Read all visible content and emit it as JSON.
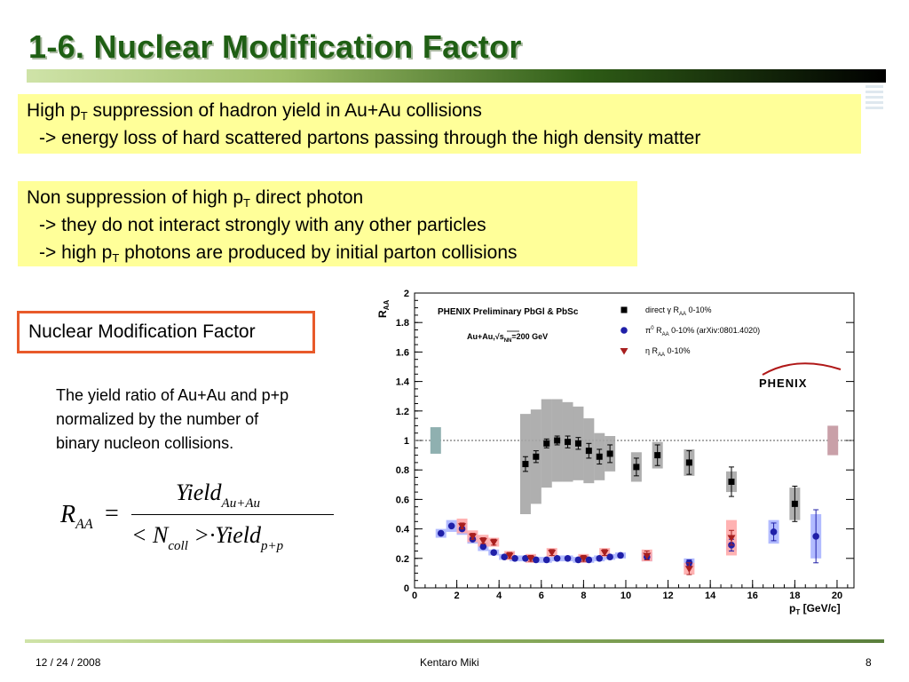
{
  "slide": {
    "title": "1-6. Nuclear Modification Factor",
    "box1": {
      "line1_pre": "High p",
      "line1_sub": "T",
      "line1_post": " suppression of hadron yield in Au+Au collisions",
      "line2": "-> energy loss of hard scattered partons passing through the high density matter"
    },
    "box2": {
      "line1_pre": "Non suppression of high p",
      "line1_sub": "T",
      "line1_post": " direct photon",
      "line2": "-> they do not interact strongly with any other particles",
      "line3_pre": "-> high p",
      "line3_sub": "T",
      "line3_post": " photons are produced by initial parton collisions"
    },
    "nmf_label": "Nuclear Modification Factor",
    "description": [
      "The yield ratio of Au+Au and p+p",
      "normalized by the number of",
      "binary nucleon collisions."
    ],
    "formula": {
      "lhs": "R",
      "lhs_sub": "AA",
      "eq": "=",
      "num": "Yield",
      "num_sub": "Au+Au",
      "den_pre": "< N",
      "den_sub1": "coll",
      "den_mid": " >·Yield",
      "den_sub2": "p+p"
    },
    "footer": {
      "date": "12 / 24 / 2008",
      "author": "Kentaro Miki",
      "page": "8"
    }
  },
  "chart_data": {
    "type": "scatter",
    "ylabel": "R_AA",
    "xlabel": "p_T [GeV/c]",
    "xlim": [
      0,
      20.8
    ],
    "ylim": [
      0,
      2
    ],
    "x_ticks": [
      0,
      2,
      4,
      6,
      8,
      10,
      12,
      14,
      16,
      18,
      20
    ],
    "y_ticks": [
      0,
      0.2,
      0.4,
      0.6,
      0.8,
      1,
      1.2,
      1.4,
      1.6,
      1.8,
      2
    ],
    "x_tick_labels": [
      "0",
      "2",
      "4",
      "6",
      "8",
      "10",
      "12",
      "14",
      "16",
      "18",
      "20"
    ],
    "y_tick_labels": [
      "0",
      "0.2",
      "0.4",
      "0.6",
      "0.8",
      "1",
      "1.2",
      "1.4",
      "1.6",
      "1.8",
      "2"
    ],
    "reference_line": 1,
    "header_text": "PHENIX Preliminary PbGl & PbSc",
    "energy_text": "Au+Au,√s",
    "energy_sub": "NN",
    "energy_post": "=200 GeV",
    "logo": "PHENIX",
    "norm_boxes": [
      {
        "x": 1.0,
        "low": 0.91,
        "high": 1.09,
        "color": "#8fb0b0"
      },
      {
        "x": 19.8,
        "low": 0.9,
        "high": 1.1,
        "color": "#c9a0a8"
      }
    ],
    "series": [
      {
        "name": "direct γ R",
        "name_sub": "AA",
        "name_post": " 0-10%",
        "marker": "square",
        "color": "#000000",
        "syst_color": "#a6a6a6",
        "points": [
          {
            "x": 5.25,
            "y": 0.84,
            "err": 0.05,
            "syst": 0.34
          },
          {
            "x": 5.75,
            "y": 0.89,
            "err": 0.04,
            "syst": 0.32
          },
          {
            "x": 6.25,
            "y": 0.98,
            "err": 0.03,
            "syst": 0.3
          },
          {
            "x": 6.75,
            "y": 1.0,
            "err": 0.03,
            "syst": 0.28
          },
          {
            "x": 7.25,
            "y": 0.99,
            "err": 0.04,
            "syst": 0.27
          },
          {
            "x": 7.75,
            "y": 0.98,
            "err": 0.04,
            "syst": 0.25
          },
          {
            "x": 8.25,
            "y": 0.93,
            "err": 0.05,
            "syst": 0.22
          },
          {
            "x": 8.75,
            "y": 0.89,
            "err": 0.05,
            "syst": 0.16
          },
          {
            "x": 9.25,
            "y": 0.91,
            "err": 0.06,
            "syst": 0.12
          },
          {
            "x": 10.5,
            "y": 0.82,
            "err": 0.06,
            "syst": 0.1
          },
          {
            "x": 11.5,
            "y": 0.9,
            "err": 0.07,
            "syst": 0.09
          },
          {
            "x": 13.0,
            "y": 0.85,
            "err": 0.08,
            "syst": 0.09
          },
          {
            "x": 15.0,
            "y": 0.72,
            "err": 0.1,
            "syst": 0.07
          },
          {
            "x": 18.0,
            "y": 0.57,
            "err": 0.12,
            "syst": 0.11
          }
        ]
      },
      {
        "name": "π",
        "name_sup": "0",
        "name_mid": " R",
        "name_sub": "AA",
        "name_post": " 0-10% (arXiv:0801.4020)",
        "marker": "circle",
        "color": "#1f1fa8",
        "syst_color": "#aab4ff",
        "points": [
          {
            "x": 1.25,
            "y": 0.37,
            "err": 0.01,
            "syst": 0.03
          },
          {
            "x": 1.75,
            "y": 0.42,
            "err": 0.01,
            "syst": 0.04
          },
          {
            "x": 2.25,
            "y": 0.4,
            "err": 0.01,
            "syst": 0.04
          },
          {
            "x": 2.75,
            "y": 0.33,
            "err": 0.01,
            "syst": 0.03
          },
          {
            "x": 3.25,
            "y": 0.28,
            "err": 0.01,
            "syst": 0.03
          },
          {
            "x": 3.75,
            "y": 0.24,
            "err": 0.01,
            "syst": 0.02
          },
          {
            "x": 4.25,
            "y": 0.21,
            "err": 0.01,
            "syst": 0.02
          },
          {
            "x": 4.75,
            "y": 0.2,
            "err": 0.01,
            "syst": 0.02
          },
          {
            "x": 5.25,
            "y": 0.2,
            "err": 0.01,
            "syst": 0.02
          },
          {
            "x": 5.75,
            "y": 0.19,
            "err": 0.01,
            "syst": 0.02
          },
          {
            "x": 6.25,
            "y": 0.19,
            "err": 0.01,
            "syst": 0.02
          },
          {
            "x": 6.75,
            "y": 0.2,
            "err": 0.01,
            "syst": 0.02
          },
          {
            "x": 7.25,
            "y": 0.2,
            "err": 0.01,
            "syst": 0.02
          },
          {
            "x": 7.75,
            "y": 0.19,
            "err": 0.01,
            "syst": 0.02
          },
          {
            "x": 8.25,
            "y": 0.19,
            "err": 0.01,
            "syst": 0.02
          },
          {
            "x": 8.75,
            "y": 0.2,
            "err": 0.01,
            "syst": 0.02
          },
          {
            "x": 9.25,
            "y": 0.21,
            "err": 0.01,
            "syst": 0.02
          },
          {
            "x": 9.75,
            "y": 0.22,
            "err": 0.01,
            "syst": 0.02
          },
          {
            "x": 11.0,
            "y": 0.21,
            "err": 0.02,
            "syst": 0.03
          },
          {
            "x": 13.0,
            "y": 0.17,
            "err": 0.02,
            "syst": 0.03
          },
          {
            "x": 15.0,
            "y": 0.29,
            "err": 0.04,
            "syst": 0.04
          },
          {
            "x": 17.0,
            "y": 0.38,
            "err": 0.06,
            "syst": 0.08
          },
          {
            "x": 19.0,
            "y": 0.35,
            "err": 0.18,
            "syst": 0.15
          }
        ]
      },
      {
        "name": "η R",
        "name_sub": "AA",
        "name_post": " 0-10%",
        "marker": "triangle-down",
        "color": "#a81f1f",
        "syst_color": "#ffaaaa",
        "points": [
          {
            "x": 2.25,
            "y": 0.42,
            "err": 0.02,
            "syst": 0.05
          },
          {
            "x": 2.75,
            "y": 0.35,
            "err": 0.02,
            "syst": 0.04
          },
          {
            "x": 3.25,
            "y": 0.32,
            "err": 0.02,
            "syst": 0.04
          },
          {
            "x": 3.75,
            "y": 0.31,
            "err": 0.02,
            "syst": 0.03
          },
          {
            "x": 4.5,
            "y": 0.22,
            "err": 0.02,
            "syst": 0.03
          },
          {
            "x": 5.5,
            "y": 0.2,
            "err": 0.02,
            "syst": 0.03
          },
          {
            "x": 6.5,
            "y": 0.24,
            "err": 0.02,
            "syst": 0.03
          },
          {
            "x": 8.0,
            "y": 0.2,
            "err": 0.02,
            "syst": 0.03
          },
          {
            "x": 9.0,
            "y": 0.24,
            "err": 0.02,
            "syst": 0.03
          },
          {
            "x": 11.0,
            "y": 0.22,
            "err": 0.03,
            "syst": 0.04
          },
          {
            "x": 13.0,
            "y": 0.13,
            "err": 0.04,
            "syst": 0.04
          },
          {
            "x": 15.0,
            "y": 0.34,
            "err": 0.05,
            "syst": 0.12
          }
        ]
      }
    ]
  }
}
